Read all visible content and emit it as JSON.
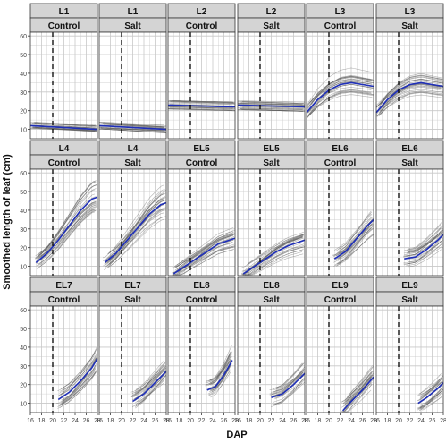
{
  "chart_data": {
    "type": "line",
    "ylabel": "Smoothed length of leaf (cm)",
    "xlabel": "DAP",
    "xlim": [
      16,
      28
    ],
    "ylim": [
      5,
      62
    ],
    "x_ticks": [
      "16",
      "18",
      "20",
      "22",
      "24",
      "26",
      "28"
    ],
    "y_ticks": [
      "10",
      "20",
      "30",
      "40",
      "50",
      "60"
    ],
    "vline_x": 20,
    "grid": true,
    "colors": {
      "mean_line": "#1f2fb8",
      "individual_lines": "#555555",
      "strip_bg": "#d4d4d4",
      "grid": "#c8c8c8"
    },
    "panels": [
      {
        "leaf": "L1",
        "treatment": "Control",
        "mean": {
          "x": [
            16,
            28
          ],
          "y": [
            12,
            10
          ]
        },
        "spread": 2
      },
      {
        "leaf": "L1",
        "treatment": "Salt",
        "mean": {
          "x": [
            16,
            28
          ],
          "y": [
            12,
            10
          ]
        },
        "spread": 2
      },
      {
        "leaf": "L2",
        "treatment": "Control",
        "mean": {
          "x": [
            16,
            28
          ],
          "y": [
            23,
            22
          ]
        },
        "spread": 2.5
      },
      {
        "leaf": "L2",
        "treatment": "Salt",
        "mean": {
          "x": [
            16,
            28
          ],
          "y": [
            23,
            22
          ]
        },
        "spread": 2.5
      },
      {
        "leaf": "L3",
        "treatment": "Control",
        "mean": {
          "x": [
            16,
            18,
            20,
            22,
            24,
            26,
            28
          ],
          "y": [
            19,
            26,
            31,
            34,
            35,
            34,
            33
          ]
        },
        "spread": 4
      },
      {
        "leaf": "L3",
        "treatment": "Salt",
        "mean": {
          "x": [
            16,
            18,
            20,
            22,
            24,
            26,
            28
          ],
          "y": [
            19,
            26,
            31,
            34,
            35,
            34,
            33
          ]
        },
        "spread": 4
      },
      {
        "leaf": "L4",
        "treatment": "Control",
        "mean": {
          "x": [
            17,
            19,
            21,
            23,
            25,
            27,
            28
          ],
          "y": [
            12,
            17,
            24,
            32,
            40,
            46,
            47
          ]
        },
        "spread": 4
      },
      {
        "leaf": "L4",
        "treatment": "Salt",
        "mean": {
          "x": [
            17,
            19,
            21,
            23,
            25,
            27,
            28
          ],
          "y": [
            12,
            17,
            24,
            31,
            38,
            43,
            44
          ]
        },
        "spread": 4
      },
      {
        "leaf": "EL5",
        "treatment": "Control",
        "mean": {
          "x": [
            17,
            19,
            21,
            23,
            25,
            27,
            28
          ],
          "y": [
            6,
            10,
            14,
            18,
            22,
            24,
            25
          ]
        },
        "spread": 4
      },
      {
        "leaf": "EL5",
        "treatment": "Salt",
        "mean": {
          "x": [
            17,
            19,
            21,
            23,
            25,
            27,
            28
          ],
          "y": [
            6,
            10,
            14,
            18,
            21,
            23,
            24
          ]
        },
        "spread": 4
      },
      {
        "leaf": "EL6",
        "treatment": "Control",
        "mean": {
          "x": [
            21,
            23,
            25,
            27,
            28
          ],
          "y": [
            14,
            18,
            25,
            32,
            35
          ]
        },
        "spread": 5
      },
      {
        "leaf": "EL6",
        "treatment": "Salt",
        "mean": {
          "x": [
            21,
            23,
            25,
            27,
            28
          ],
          "y": [
            14,
            15,
            19,
            24,
            27
          ]
        },
        "spread": 5
      },
      {
        "leaf": "EL7",
        "treatment": "Control",
        "mean": {
          "x": [
            21,
            23,
            25,
            27,
            28
          ],
          "y": [
            12,
            16,
            22,
            29,
            34
          ]
        },
        "spread": 5
      },
      {
        "leaf": "EL7",
        "treatment": "Salt",
        "mean": {
          "x": [
            22,
            24,
            26,
            28
          ],
          "y": [
            11,
            15,
            21,
            27
          ]
        },
        "spread": 5
      },
      {
        "leaf": "EL8",
        "treatment": "Control",
        "mean": {
          "x": [
            23,
            24.5,
            26,
            27.5
          ],
          "y": [
            17,
            19,
            25,
            33
          ]
        },
        "spread": 5
      },
      {
        "leaf": "EL8",
        "treatment": "Salt",
        "mean": {
          "x": [
            22,
            24,
            26,
            28
          ],
          "y": [
            13,
            15,
            20,
            26
          ]
        },
        "spread": 5
      },
      {
        "leaf": "EL9",
        "treatment": "Control",
        "mean": {
          "x": [
            22.5,
            24,
            26,
            28
          ],
          "y": [
            6,
            11,
            17,
            24
          ]
        },
        "spread": 5
      },
      {
        "leaf": "EL9",
        "treatment": "Salt",
        "mean": {
          "x": [
            23.5,
            25,
            27,
            28
          ],
          "y": [
            10,
            13,
            18,
            21
          ]
        },
        "spread": 5
      }
    ]
  }
}
